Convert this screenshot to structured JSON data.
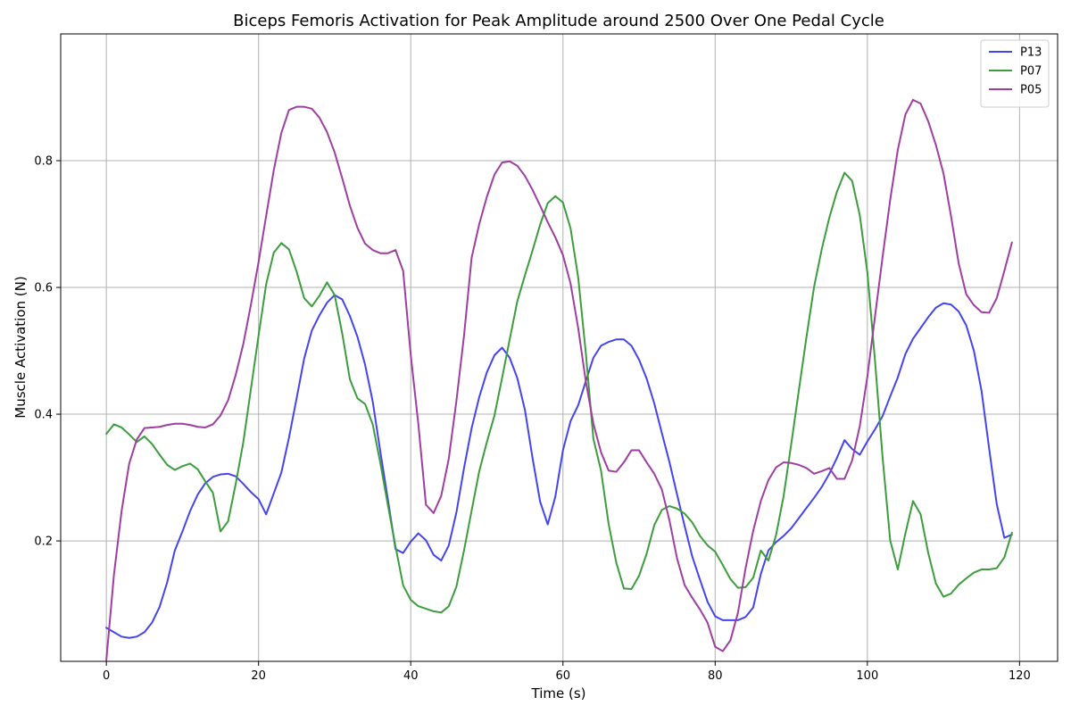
{
  "chart_data": {
    "type": "line",
    "title": "Biceps Femoris Activation for Peak Amplitude around 2500 Over One Pedal Cycle",
    "xlabel": "Time (s)",
    "ylabel": "Muscle Activation (N)",
    "xlim": [
      -6,
      125
    ],
    "ylim": [
      0.01,
      1.0
    ],
    "xticks": [
      0,
      20,
      40,
      60,
      80,
      100,
      120
    ],
    "yticks": [
      0.2,
      0.4,
      0.6,
      0.8
    ],
    "xtick_labels": [
      "0",
      "20",
      "40",
      "60",
      "80",
      "100",
      "120"
    ],
    "ytick_labels": [
      "0.2",
      "0.4",
      "0.6",
      "0.8"
    ],
    "grid": true,
    "legend_position": "top-right",
    "series": [
      {
        "name": "P13",
        "color": "#4444ee",
        "x": [
          0,
          1,
          2,
          3,
          4,
          5,
          6,
          7,
          8,
          9,
          10,
          11,
          12,
          13,
          14,
          15,
          16,
          17,
          18,
          19,
          20,
          21,
          22,
          23,
          24,
          25,
          26,
          27,
          28,
          29,
          30,
          31,
          32,
          33,
          34,
          35,
          36,
          37,
          38,
          39,
          40,
          41,
          42,
          43,
          44,
          45,
          46,
          47,
          48,
          49,
          50,
          51,
          52,
          53,
          54,
          55,
          56,
          57,
          58,
          59,
          60,
          61,
          62,
          63,
          64,
          65,
          66,
          67,
          68,
          69,
          70,
          71,
          72,
          73,
          74,
          75,
          76,
          77,
          78,
          79,
          80,
          81,
          82,
          83,
          84,
          85,
          86,
          87,
          88,
          89,
          90,
          91,
          92,
          93,
          94,
          95,
          96,
          97,
          98,
          99,
          100,
          101,
          102,
          103,
          104,
          105,
          106,
          107,
          108,
          109,
          110,
          111,
          112,
          113,
          114,
          115,
          116,
          117,
          118,
          119
        ],
        "values": [
          0.063,
          0.056,
          0.049,
          0.047,
          0.049,
          0.056,
          0.071,
          0.096,
          0.135,
          0.185,
          0.215,
          0.247,
          0.273,
          0.291,
          0.301,
          0.305,
          0.306,
          0.302,
          0.29,
          0.277,
          0.266,
          0.242,
          0.275,
          0.308,
          0.363,
          0.425,
          0.488,
          0.532,
          0.556,
          0.576,
          0.588,
          0.581,
          0.555,
          0.522,
          0.478,
          0.42,
          0.341,
          0.265,
          0.187,
          0.181,
          0.199,
          0.212,
          0.201,
          0.178,
          0.169,
          0.193,
          0.245,
          0.315,
          0.378,
          0.427,
          0.466,
          0.493,
          0.505,
          0.489,
          0.457,
          0.407,
          0.331,
          0.262,
          0.226,
          0.27,
          0.343,
          0.389,
          0.414,
          0.452,
          0.489,
          0.508,
          0.514,
          0.518,
          0.518,
          0.508,
          0.486,
          0.456,
          0.417,
          0.37,
          0.324,
          0.273,
          0.223,
          0.175,
          0.139,
          0.104,
          0.081,
          0.075,
          0.075,
          0.075,
          0.08,
          0.095,
          0.148,
          0.185,
          0.198,
          0.208,
          0.22,
          0.236,
          0.252,
          0.268,
          0.285,
          0.306,
          0.331,
          0.359,
          0.345,
          0.336,
          0.357,
          0.376,
          0.397,
          0.428,
          0.458,
          0.495,
          0.519,
          0.536,
          0.553,
          0.568,
          0.575,
          0.573,
          0.562,
          0.54,
          0.5,
          0.437,
          0.346,
          0.258,
          0.205,
          0.21
        ]
      },
      {
        "name": "P07",
        "color": "#3d9c3d",
        "x": [
          0,
          1,
          2,
          3,
          4,
          5,
          6,
          7,
          8,
          9,
          10,
          11,
          12,
          13,
          14,
          15,
          16,
          17,
          18,
          19,
          20,
          21,
          22,
          23,
          24,
          25,
          26,
          27,
          28,
          29,
          30,
          31,
          32,
          33,
          34,
          35,
          36,
          37,
          38,
          39,
          40,
          41,
          42,
          43,
          44,
          45,
          46,
          47,
          48,
          49,
          50,
          51,
          52,
          53,
          54,
          55,
          56,
          57,
          58,
          59,
          60,
          61,
          62,
          63,
          64,
          65,
          66,
          67,
          68,
          69,
          70,
          71,
          72,
          73,
          74,
          75,
          76,
          77,
          78,
          79,
          80,
          81,
          82,
          83,
          84,
          85,
          86,
          87,
          88,
          89,
          90,
          91,
          92,
          93,
          94,
          95,
          96,
          97,
          98,
          99,
          100,
          101,
          102,
          103,
          104,
          105,
          106,
          107,
          108,
          109,
          110,
          111,
          112,
          113,
          114,
          115,
          116,
          117,
          118,
          119
        ],
        "values": [
          0.369,
          0.384,
          0.379,
          0.368,
          0.356,
          0.365,
          0.353,
          0.336,
          0.32,
          0.312,
          0.318,
          0.322,
          0.313,
          0.294,
          0.276,
          0.215,
          0.231,
          0.29,
          0.356,
          0.44,
          0.524,
          0.605,
          0.655,
          0.67,
          0.66,
          0.625,
          0.583,
          0.57,
          0.587,
          0.608,
          0.588,
          0.527,
          0.455,
          0.425,
          0.416,
          0.384,
          0.323,
          0.256,
          0.191,
          0.13,
          0.107,
          0.097,
          0.093,
          0.089,
          0.087,
          0.097,
          0.128,
          0.185,
          0.248,
          0.31,
          0.356,
          0.398,
          0.457,
          0.518,
          0.578,
          0.619,
          0.658,
          0.699,
          0.733,
          0.744,
          0.734,
          0.693,
          0.616,
          0.497,
          0.361,
          0.311,
          0.227,
          0.166,
          0.125,
          0.124,
          0.145,
          0.18,
          0.225,
          0.249,
          0.255,
          0.251,
          0.243,
          0.229,
          0.208,
          0.193,
          0.183,
          0.162,
          0.14,
          0.126,
          0.127,
          0.142,
          0.185,
          0.169,
          0.209,
          0.271,
          0.353,
          0.438,
          0.522,
          0.601,
          0.66,
          0.71,
          0.751,
          0.781,
          0.768,
          0.714,
          0.624,
          0.485,
          0.332,
          0.201,
          0.155,
          0.212,
          0.263,
          0.242,
          0.181,
          0.133,
          0.112,
          0.117,
          0.131,
          0.141,
          0.15,
          0.155,
          0.155,
          0.157,
          0.174,
          0.213
        ]
      },
      {
        "name": "P05",
        "color": "#9e3ea0",
        "x": [
          0,
          1,
          2,
          3,
          4,
          5,
          6,
          7,
          8,
          9,
          10,
          11,
          12,
          13,
          14,
          15,
          16,
          17,
          18,
          19,
          20,
          21,
          22,
          23,
          24,
          25,
          26,
          27,
          28,
          29,
          30,
          31,
          32,
          33,
          34,
          35,
          36,
          37,
          38,
          39,
          40,
          41,
          42,
          43,
          44,
          45,
          46,
          47,
          48,
          49,
          50,
          51,
          52,
          53,
          54,
          55,
          56,
          57,
          58,
          59,
          60,
          61,
          62,
          63,
          64,
          65,
          66,
          67,
          68,
          69,
          70,
          71,
          72,
          73,
          74,
          75,
          76,
          77,
          78,
          79,
          80,
          81,
          82,
          83,
          84,
          85,
          86,
          87,
          88,
          89,
          90,
          91,
          92,
          93,
          94,
          95,
          96,
          97,
          98,
          99,
          100,
          101,
          102,
          103,
          104,
          105,
          106,
          107,
          108,
          109,
          110,
          111,
          112,
          113,
          114,
          115,
          116,
          117,
          118,
          119
        ],
        "values": [
          0.012,
          0.147,
          0.247,
          0.322,
          0.36,
          0.378,
          0.379,
          0.38,
          0.383,
          0.385,
          0.385,
          0.383,
          0.38,
          0.379,
          0.384,
          0.398,
          0.422,
          0.462,
          0.511,
          0.573,
          0.64,
          0.713,
          0.785,
          0.844,
          0.88,
          0.885,
          0.885,
          0.882,
          0.868,
          0.845,
          0.813,
          0.772,
          0.729,
          0.694,
          0.669,
          0.659,
          0.654,
          0.654,
          0.659,
          0.626,
          0.493,
          0.384,
          0.257,
          0.244,
          0.271,
          0.33,
          0.421,
          0.524,
          0.647,
          0.7,
          0.743,
          0.778,
          0.797,
          0.799,
          0.792,
          0.776,
          0.754,
          0.729,
          0.703,
          0.679,
          0.651,
          0.606,
          0.536,
          0.452,
          0.385,
          0.34,
          0.311,
          0.309,
          0.324,
          0.343,
          0.343,
          0.324,
          0.306,
          0.281,
          0.232,
          0.172,
          0.13,
          0.11,
          0.092,
          0.071,
          0.033,
          0.026,
          0.043,
          0.087,
          0.157,
          0.216,
          0.263,
          0.296,
          0.316,
          0.324,
          0.323,
          0.32,
          0.315,
          0.306,
          0.31,
          0.315,
          0.298,
          0.298,
          0.327,
          0.381,
          0.459,
          0.554,
          0.648,
          0.738,
          0.817,
          0.873,
          0.896,
          0.89,
          0.862,
          0.825,
          0.78,
          0.712,
          0.638,
          0.589,
          0.572,
          0.561,
          0.56,
          0.583,
          0.626,
          0.671
        ]
      }
    ]
  }
}
